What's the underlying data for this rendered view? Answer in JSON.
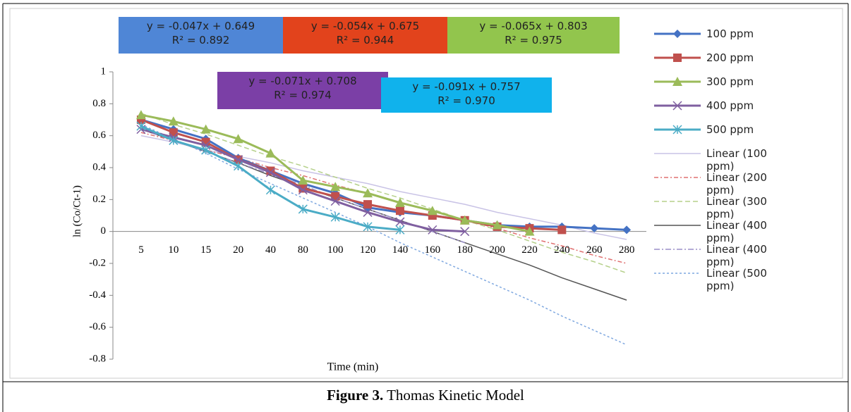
{
  "chart_data": {
    "type": "line",
    "ylabel": "ln (Co/Ct-1)",
    "xlabel": "Time (min)",
    "categories": [
      "5",
      "10",
      "15",
      "20",
      "40",
      "80",
      "100",
      "120",
      "140",
      "160",
      "180",
      "200",
      "220",
      "240",
      "260",
      "280"
    ],
    "ylim": [
      -0.8,
      1
    ],
    "yticks": [
      -0.8,
      -0.6,
      -0.4,
      -0.2,
      0,
      0.2,
      0.4,
      0.6,
      0.8,
      1
    ],
    "series": [
      {
        "name": "100 ppm",
        "color": "#4472c4",
        "marker": "diamond",
        "width": 3,
        "values": [
          0.7,
          0.64,
          0.58,
          0.46,
          0.38,
          0.3,
          0.24,
          0.15,
          0.12,
          0.1,
          0.07,
          0.04,
          0.03,
          0.03,
          0.02,
          0.01
        ]
      },
      {
        "name": "200 ppm",
        "color": "#c0504d",
        "marker": "square",
        "width": 3,
        "values": [
          0.7,
          0.62,
          0.56,
          0.45,
          0.38,
          0.27,
          0.22,
          0.17,
          0.13,
          0.1,
          0.07,
          0.03,
          0.02,
          0.01,
          null,
          null
        ]
      },
      {
        "name": "300 ppm",
        "color": "#9bbb59",
        "marker": "triangle",
        "width": 3,
        "values": [
          0.73,
          0.69,
          0.64,
          0.58,
          0.49,
          0.32,
          0.28,
          0.24,
          0.18,
          0.13,
          0.07,
          0.04,
          0.0,
          null,
          null,
          null
        ]
      },
      {
        "name": "400 ppm",
        "color": "#7f5fa0",
        "marker": "x",
        "width": 3,
        "values": [
          0.64,
          0.59,
          0.54,
          0.45,
          0.37,
          0.26,
          0.19,
          0.12,
          0.06,
          0.01,
          0.0,
          null,
          null,
          null,
          null,
          null
        ]
      },
      {
        "name": "500 ppm",
        "color": "#4bacc6",
        "marker": "star",
        "width": 3,
        "values": [
          0.66,
          0.57,
          0.51,
          0.41,
          0.26,
          0.14,
          0.09,
          0.03,
          0.01,
          null,
          null,
          null,
          null,
          null,
          null,
          null
        ]
      },
      {
        "name": "Linear (100 ppm)",
        "color": "#c9c3e6",
        "dash": "none",
        "width": 1.5,
        "values": [
          0.6,
          0.56,
          0.51,
          0.47,
          0.43,
          0.38,
          0.34,
          0.3,
          0.25,
          0.21,
          0.17,
          0.12,
          0.08,
          0.04,
          -0.01,
          -0.05
        ]
      },
      {
        "name": "Linear (200 ppm)",
        "color": "#e07070",
        "dash": "6 3 2 3",
        "width": 1.5,
        "values": [
          0.62,
          0.57,
          0.51,
          0.46,
          0.4,
          0.35,
          0.29,
          0.24,
          0.18,
          0.13,
          0.07,
          0.02,
          -0.04,
          -0.09,
          -0.15,
          -0.2
        ]
      },
      {
        "name": "Linear (300 ppm)",
        "color": "#b5d08a",
        "dash": "7 4",
        "width": 1.5,
        "values": [
          0.74,
          0.67,
          0.61,
          0.54,
          0.47,
          0.41,
          0.34,
          0.27,
          0.21,
          0.14,
          0.07,
          0.01,
          -0.06,
          -0.13,
          -0.19,
          -0.26
        ]
      },
      {
        "name": "Linear (400 ppm)",
        "color": "#555555",
        "dash": "none",
        "width": 1.5,
        "values": [
          0.64,
          0.57,
          0.5,
          0.43,
          0.35,
          0.28,
          0.21,
          0.14,
          0.07,
          0.0,
          -0.07,
          -0.14,
          -0.21,
          -0.29,
          -0.36,
          -0.43
        ]
      },
      {
        "name": "Linear (400 ppm)",
        "color": "#9a8fc8",
        "dash": "8 3 2 3",
        "width": 1.5,
        "values": [
          0.64,
          0.57,
          0.5,
          0.43,
          0.36,
          0.29,
          0.21,
          0.14,
          0.07,
          0.0,
          -0.07,
          null,
          null,
          null,
          null,
          null
        ]
      },
      {
        "name": "Linear (500 ppm)",
        "color": "#7fa8e0",
        "dash": "3 3",
        "width": 1.5,
        "values": [
          0.67,
          0.58,
          0.49,
          0.39,
          0.3,
          0.21,
          0.12,
          0.03,
          -0.07,
          -0.16,
          -0.25,
          -0.34,
          -0.43,
          -0.53,
          -0.62,
          -0.71
        ]
      }
    ],
    "annotations": [
      {
        "lines": [
          "y = -0.047x + 0.649",
          "R² = 0.892"
        ],
        "color": "#4f86d6"
      },
      {
        "lines": [
          "y = -0.054x + 0.675",
          "R² = 0.944"
        ],
        "color": "#e2431c"
      },
      {
        "lines": [
          "y = -0.065x + 0.803",
          "R² = 0.975"
        ],
        "color": "#92c54d"
      },
      {
        "lines": [
          "y = -0.071x + 0.708",
          "R² = 0.974"
        ],
        "color": "#7b3fa6"
      },
      {
        "lines": [
          "y = -0.091x + 0.757",
          "R² = 0.970"
        ],
        "color": "#10b2ec"
      }
    ]
  },
  "caption": {
    "label": "Figure 3.",
    "text": "Thomas Kinetic Model"
  }
}
